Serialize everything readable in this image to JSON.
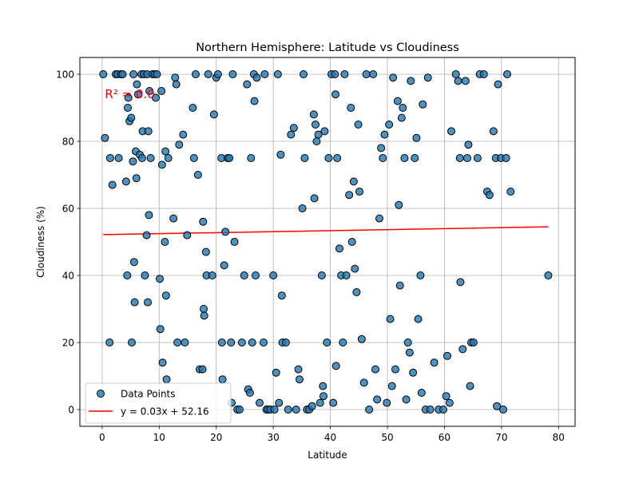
{
  "chart_data": {
    "type": "scatter",
    "title": "Northern Hemisphere: Latitude vs Cloudiness",
    "xlabel": "Latitude",
    "ylabel": "Cloudiness (%)",
    "xlim": [
      -3.9,
      82.9
    ],
    "ylim": [
      -5,
      105
    ],
    "xticks": [
      0,
      10,
      20,
      30,
      40,
      50,
      60,
      70,
      80
    ],
    "yticks": [
      0,
      20,
      40,
      60,
      80,
      100
    ],
    "grid": true,
    "legend_position": "lower-left",
    "colors": {
      "points": "#1f77b4",
      "points_edge": "#000000",
      "line": "#ff0000",
      "annotation": "#ff0000"
    },
    "series": [
      {
        "name": "Data Points",
        "kind": "scatter",
        "points": [
          [
            0.2,
            100
          ],
          [
            0.5,
            81
          ],
          [
            1.3,
            20
          ],
          [
            1.4,
            75
          ],
          [
            1.8,
            67
          ],
          [
            2.4,
            100
          ],
          [
            2.7,
            100
          ],
          [
            2.9,
            75
          ],
          [
            3.3,
            100
          ],
          [
            3.6,
            100
          ],
          [
            4.2,
            68
          ],
          [
            4.4,
            40
          ],
          [
            4.5,
            90
          ],
          [
            4.6,
            93
          ],
          [
            4.8,
            86
          ],
          [
            5.1,
            87
          ],
          [
            5.2,
            20
          ],
          [
            5.4,
            74
          ],
          [
            5.5,
            100
          ],
          [
            5.6,
            44
          ],
          [
            5.7,
            32
          ],
          [
            5.9,
            77
          ],
          [
            6.0,
            69
          ],
          [
            6.1,
            97
          ],
          [
            6.3,
            94
          ],
          [
            6.6,
            76
          ],
          [
            6.9,
            100
          ],
          [
            7.0,
            75
          ],
          [
            7.1,
            83
          ],
          [
            7.3,
            100
          ],
          [
            7.5,
            40
          ],
          [
            7.8,
            52
          ],
          [
            7.9,
            100
          ],
          [
            8.0,
            32
          ],
          [
            8.1,
            83
          ],
          [
            8.2,
            58
          ],
          [
            8.3,
            95
          ],
          [
            8.5,
            75
          ],
          [
            8.8,
            100
          ],
          [
            9.2,
            100
          ],
          [
            9.4,
            93
          ],
          [
            9.6,
            100
          ],
          [
            10.1,
            39
          ],
          [
            10.2,
            24
          ],
          [
            10.4,
            95
          ],
          [
            10.5,
            73
          ],
          [
            10.6,
            14
          ],
          [
            11.0,
            50
          ],
          [
            11.1,
            77
          ],
          [
            11.2,
            34
          ],
          [
            11.3,
            9
          ],
          [
            11.6,
            75
          ],
          [
            12.5,
            57
          ],
          [
            12.8,
            99
          ],
          [
            13.0,
            97
          ],
          [
            13.2,
            20
          ],
          [
            13.5,
            79
          ],
          [
            14.2,
            82
          ],
          [
            14.5,
            20
          ],
          [
            14.9,
            52
          ],
          [
            15.9,
            90
          ],
          [
            16.1,
            75
          ],
          [
            16.4,
            100
          ],
          [
            16.8,
            70
          ],
          [
            17.1,
            12
          ],
          [
            17.6,
            12
          ],
          [
            17.7,
            56
          ],
          [
            17.8,
            30
          ],
          [
            17.9,
            28
          ],
          [
            18.2,
            47
          ],
          [
            18.3,
            40
          ],
          [
            18.6,
            100
          ],
          [
            19.3,
            40
          ],
          [
            19.6,
            88
          ],
          [
            20.0,
            99
          ],
          [
            20.3,
            100
          ],
          [
            20.9,
            75
          ],
          [
            21.0,
            20
          ],
          [
            21.1,
            9
          ],
          [
            21.4,
            43
          ],
          [
            21.6,
            53
          ],
          [
            22.0,
            75
          ],
          [
            22.3,
            75
          ],
          [
            22.6,
            20
          ],
          [
            22.7,
            2
          ],
          [
            22.9,
            100
          ],
          [
            23.2,
            50
          ],
          [
            23.7,
            0
          ],
          [
            24.1,
            0
          ],
          [
            24.5,
            20
          ],
          [
            24.9,
            40
          ],
          [
            25.4,
            97
          ],
          [
            25.6,
            6
          ],
          [
            25.9,
            5
          ],
          [
            26.1,
            75
          ],
          [
            26.3,
            20
          ],
          [
            26.6,
            100
          ],
          [
            26.7,
            92
          ],
          [
            26.9,
            40
          ],
          [
            27.1,
            99
          ],
          [
            27.6,
            2
          ],
          [
            28.3,
            20
          ],
          [
            28.5,
            100
          ],
          [
            28.8,
            0
          ],
          [
            29.1,
            0
          ],
          [
            29.5,
            0
          ],
          [
            30.0,
            40
          ],
          [
            30.2,
            0
          ],
          [
            30.5,
            11
          ],
          [
            30.8,
            100
          ],
          [
            31.0,
            2
          ],
          [
            31.3,
            76
          ],
          [
            31.5,
            34
          ],
          [
            31.6,
            20
          ],
          [
            32.2,
            20
          ],
          [
            32.6,
            0
          ],
          [
            33.1,
            82
          ],
          [
            33.6,
            84
          ],
          [
            34.0,
            0
          ],
          [
            34.4,
            12
          ],
          [
            34.6,
            9
          ],
          [
            35.1,
            60
          ],
          [
            35.3,
            100
          ],
          [
            35.5,
            75
          ],
          [
            35.9,
            0
          ],
          [
            36.3,
            0
          ],
          [
            36.8,
            1
          ],
          [
            37.1,
            88
          ],
          [
            37.2,
            63
          ],
          [
            37.4,
            85
          ],
          [
            37.6,
            80
          ],
          [
            37.9,
            82
          ],
          [
            38.2,
            2
          ],
          [
            38.5,
            40
          ],
          [
            38.7,
            7
          ],
          [
            38.8,
            4
          ],
          [
            39.0,
            83
          ],
          [
            39.4,
            20
          ],
          [
            39.7,
            75
          ],
          [
            40.2,
            100
          ],
          [
            40.5,
            2
          ],
          [
            40.8,
            100
          ],
          [
            40.9,
            94
          ],
          [
            41.0,
            13
          ],
          [
            41.2,
            75
          ],
          [
            41.6,
            48
          ],
          [
            41.9,
            40
          ],
          [
            42.2,
            20
          ],
          [
            42.5,
            100
          ],
          [
            42.8,
            40
          ],
          [
            43.3,
            64
          ],
          [
            43.6,
            90
          ],
          [
            43.8,
            50
          ],
          [
            44.1,
            68
          ],
          [
            44.3,
            42
          ],
          [
            44.6,
            35
          ],
          [
            44.9,
            85
          ],
          [
            45.1,
            65
          ],
          [
            45.5,
            21
          ],
          [
            45.9,
            8
          ],
          [
            46.3,
            100
          ],
          [
            46.8,
            0
          ],
          [
            47.5,
            100
          ],
          [
            47.9,
            12
          ],
          [
            48.2,
            3
          ],
          [
            48.6,
            57
          ],
          [
            48.9,
            78
          ],
          [
            49.2,
            75
          ],
          [
            49.5,
            82
          ],
          [
            49.9,
            2
          ],
          [
            50.3,
            85
          ],
          [
            50.5,
            27
          ],
          [
            50.8,
            7
          ],
          [
            51.0,
            99
          ],
          [
            51.4,
            12
          ],
          [
            51.8,
            92
          ],
          [
            52.0,
            61
          ],
          [
            52.2,
            37
          ],
          [
            52.5,
            87
          ],
          [
            52.7,
            90
          ],
          [
            53.0,
            75
          ],
          [
            53.3,
            3
          ],
          [
            53.6,
            20
          ],
          [
            53.9,
            17
          ],
          [
            54.1,
            98
          ],
          [
            54.5,
            11
          ],
          [
            54.8,
            75
          ],
          [
            55.1,
            81
          ],
          [
            55.4,
            27
          ],
          [
            55.8,
            40
          ],
          [
            56.0,
            5
          ],
          [
            56.2,
            91
          ],
          [
            56.7,
            0
          ],
          [
            57.1,
            99
          ],
          [
            57.5,
            0
          ],
          [
            58.2,
            14
          ],
          [
            59.0,
            0
          ],
          [
            59.8,
            0
          ],
          [
            60.3,
            4
          ],
          [
            60.5,
            16
          ],
          [
            60.9,
            2
          ],
          [
            61.2,
            83
          ],
          [
            62.0,
            100
          ],
          [
            62.4,
            98
          ],
          [
            62.7,
            75
          ],
          [
            62.8,
            38
          ],
          [
            63.2,
            18
          ],
          [
            63.7,
            98
          ],
          [
            64.0,
            75
          ],
          [
            64.2,
            79
          ],
          [
            64.5,
            7
          ],
          [
            64.7,
            20
          ],
          [
            65.1,
            20
          ],
          [
            65.8,
            75
          ],
          [
            66.2,
            100
          ],
          [
            66.9,
            100
          ],
          [
            67.5,
            65
          ],
          [
            67.9,
            64
          ],
          [
            68.6,
            83
          ],
          [
            69.0,
            75
          ],
          [
            69.2,
            1
          ],
          [
            69.4,
            97
          ],
          [
            69.9,
            75
          ],
          [
            70.3,
            0
          ],
          [
            70.8,
            75
          ],
          [
            71.0,
            100
          ],
          [
            71.6,
            65
          ],
          [
            78.2,
            40
          ]
        ]
      },
      {
        "name": "y = 0.03x + 52.16",
        "kind": "line",
        "slope": 0.03,
        "intercept": 52.16,
        "x_range": [
          0.2,
          78.2
        ]
      }
    ],
    "annotations": [
      {
        "text": "R² = 0.0",
        "x": 0.5,
        "y": 94
      }
    ]
  }
}
